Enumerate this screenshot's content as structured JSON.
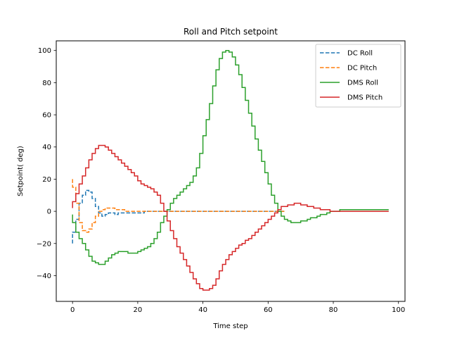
{
  "chart_data": {
    "type": "line",
    "drawstyle": "steps",
    "title": "Roll and Pitch setpoint",
    "xlabel": "Time step",
    "ylabel": "Setpoint( deg)",
    "xlim": [
      -5,
      102
    ],
    "ylim": [
      -56,
      106
    ],
    "xticks": [
      0,
      20,
      40,
      60,
      80,
      100
    ],
    "yticks": [
      -40,
      -20,
      0,
      20,
      40,
      60,
      80,
      100
    ],
    "grid": false,
    "legend_position": "top-right",
    "series": [
      {
        "name": "DC Roll",
        "color": "#1f77b4",
        "dashed": true,
        "x": [
          0,
          1,
          2,
          3,
          4,
          5,
          6,
          7,
          8,
          9,
          10,
          11,
          12,
          13,
          14,
          15,
          16,
          17,
          18,
          19,
          20,
          21,
          22,
          23,
          24,
          25,
          26,
          27,
          28,
          29,
          30,
          31,
          32,
          33,
          34,
          35,
          36,
          37,
          38,
          39,
          40,
          41,
          42,
          43,
          44,
          45,
          46,
          47,
          48,
          49,
          50,
          51,
          52,
          53,
          54,
          55,
          56,
          57,
          58,
          59,
          60,
          61,
          62,
          63,
          64,
          65
        ],
        "y": [
          -20,
          -13,
          -5,
          5,
          10,
          13,
          12,
          8,
          3,
          -1,
          -3,
          -2,
          -1,
          -1,
          -2,
          -1,
          -1,
          -1,
          -1,
          -1,
          -1,
          -1,
          -1,
          0,
          0,
          0,
          0,
          0,
          0,
          0,
          0,
          0,
          0,
          0,
          0,
          0,
          0,
          0,
          0,
          0,
          0,
          0,
          0,
          0,
          0,
          0,
          0,
          0,
          0,
          0,
          0,
          0,
          0,
          0,
          0,
          0,
          0,
          0,
          0,
          0,
          0,
          0,
          0,
          0,
          0,
          0
        ]
      },
      {
        "name": "DC Pitch",
        "color": "#ff7f0e",
        "dashed": true,
        "x": [
          0,
          1,
          2,
          3,
          4,
          5,
          6,
          7,
          8,
          9,
          10,
          11,
          12,
          13,
          14,
          15,
          16,
          17,
          18,
          19,
          20,
          21,
          22,
          23,
          24,
          25,
          26,
          27,
          28,
          29,
          30,
          31,
          32,
          33,
          34,
          35,
          36,
          37,
          38,
          39,
          40,
          41,
          42,
          43,
          44,
          45,
          46,
          47,
          48,
          49,
          50,
          51,
          52,
          53,
          54,
          55,
          56,
          57,
          58,
          59,
          60,
          61,
          62,
          63,
          64,
          65
        ],
        "y": [
          20,
          15,
          5,
          -7,
          -12,
          -13,
          -11,
          -7,
          -3,
          0,
          1,
          2,
          2,
          2,
          1,
          1,
          1,
          0,
          0,
          0,
          0,
          0,
          0,
          0,
          0,
          0,
          0,
          0,
          0,
          0,
          0,
          0,
          0,
          0,
          0,
          0,
          0,
          0,
          0,
          0,
          0,
          0,
          0,
          0,
          0,
          0,
          0,
          0,
          0,
          0,
          0,
          0,
          0,
          0,
          0,
          0,
          0,
          0,
          0,
          0,
          0,
          0,
          0,
          0,
          0,
          0
        ]
      },
      {
        "name": "DMS Roll",
        "color": "#2ca02c",
        "dashed": false,
        "x": [
          0,
          1,
          2,
          3,
          4,
          5,
          6,
          7,
          8,
          9,
          10,
          11,
          12,
          13,
          14,
          15,
          16,
          17,
          18,
          19,
          20,
          21,
          22,
          23,
          24,
          25,
          26,
          27,
          28,
          29,
          30,
          31,
          32,
          33,
          34,
          35,
          36,
          37,
          38,
          39,
          40,
          41,
          42,
          43,
          44,
          45,
          46,
          47,
          48,
          49,
          50,
          51,
          52,
          53,
          54,
          55,
          56,
          57,
          58,
          59,
          60,
          61,
          62,
          63,
          64,
          65,
          66,
          67,
          68,
          69,
          70,
          71,
          72,
          73,
          74,
          75,
          76,
          77,
          78,
          79,
          80,
          81,
          82,
          83,
          84,
          85,
          86,
          87,
          88,
          89,
          90,
          91,
          92,
          93,
          94,
          95,
          96,
          97
        ],
        "y": [
          -2,
          -7,
          -13,
          -17,
          -20,
          -24,
          -28,
          -31,
          -32,
          -33,
          -33,
          -31,
          -29,
          -27,
          -26,
          -25,
          -25,
          -25,
          -26,
          -26,
          -26,
          -25,
          -24,
          -23,
          -22,
          -20,
          -17,
          -13,
          -7,
          -3,
          1,
          5,
          8,
          10,
          12,
          14,
          16,
          18,
          22,
          27,
          36,
          47,
          57,
          67,
          78,
          88,
          95,
          99,
          100,
          99,
          96,
          91,
          85,
          77,
          69,
          61,
          53,
          45,
          38,
          31,
          24,
          17,
          10,
          5,
          0,
          -3,
          -5,
          -6,
          -7,
          -7,
          -7,
          -6,
          -6,
          -5,
          -4,
          -4,
          -3,
          -2,
          -2,
          -1,
          0,
          0,
          0,
          1,
          1,
          1,
          1,
          1,
          1,
          1,
          1,
          1,
          1,
          1,
          1,
          1,
          1,
          1
        ]
      },
      {
        "name": "DMS Pitch",
        "color": "#d62728",
        "dashed": false,
        "x": [
          0,
          1,
          2,
          3,
          4,
          5,
          6,
          7,
          8,
          9,
          10,
          11,
          12,
          13,
          14,
          15,
          16,
          17,
          18,
          19,
          20,
          21,
          22,
          23,
          24,
          25,
          26,
          27,
          28,
          29,
          30,
          31,
          32,
          33,
          34,
          35,
          36,
          37,
          38,
          39,
          40,
          41,
          42,
          43,
          44,
          45,
          46,
          47,
          48,
          49,
          50,
          51,
          52,
          53,
          54,
          55,
          56,
          57,
          58,
          59,
          60,
          61,
          62,
          63,
          64,
          65,
          66,
          67,
          68,
          69,
          70,
          71,
          72,
          73,
          74,
          75,
          76,
          77,
          78,
          79,
          80,
          81,
          82,
          83,
          84,
          85,
          86,
          87,
          88,
          89,
          90,
          91,
          92,
          93,
          94,
          95,
          96,
          97
        ],
        "y": [
          2,
          6,
          11,
          17,
          22,
          27,
          32,
          36,
          39,
          41,
          41,
          40,
          38,
          36,
          34,
          32,
          30,
          28,
          26,
          24,
          22,
          19,
          17,
          16,
          15,
          14,
          12,
          10,
          5,
          0,
          -6,
          -12,
          -17,
          -22,
          -26,
          -30,
          -34,
          -38,
          -42,
          -45,
          -48,
          -49,
          -49,
          -48,
          -46,
          -42,
          -37,
          -33,
          -30,
          -27,
          -25,
          -23,
          -21,
          -20,
          -18,
          -17,
          -15,
          -13,
          -11,
          -9,
          -7,
          -5,
          -3,
          -1,
          1,
          3,
          3,
          4,
          4,
          5,
          5,
          4,
          4,
          3,
          3,
          2,
          2,
          1,
          1,
          1,
          0,
          0,
          0,
          0,
          0,
          0,
          0,
          0,
          0,
          0,
          0,
          0,
          0,
          0,
          0,
          0,
          0,
          0
        ]
      }
    ]
  }
}
